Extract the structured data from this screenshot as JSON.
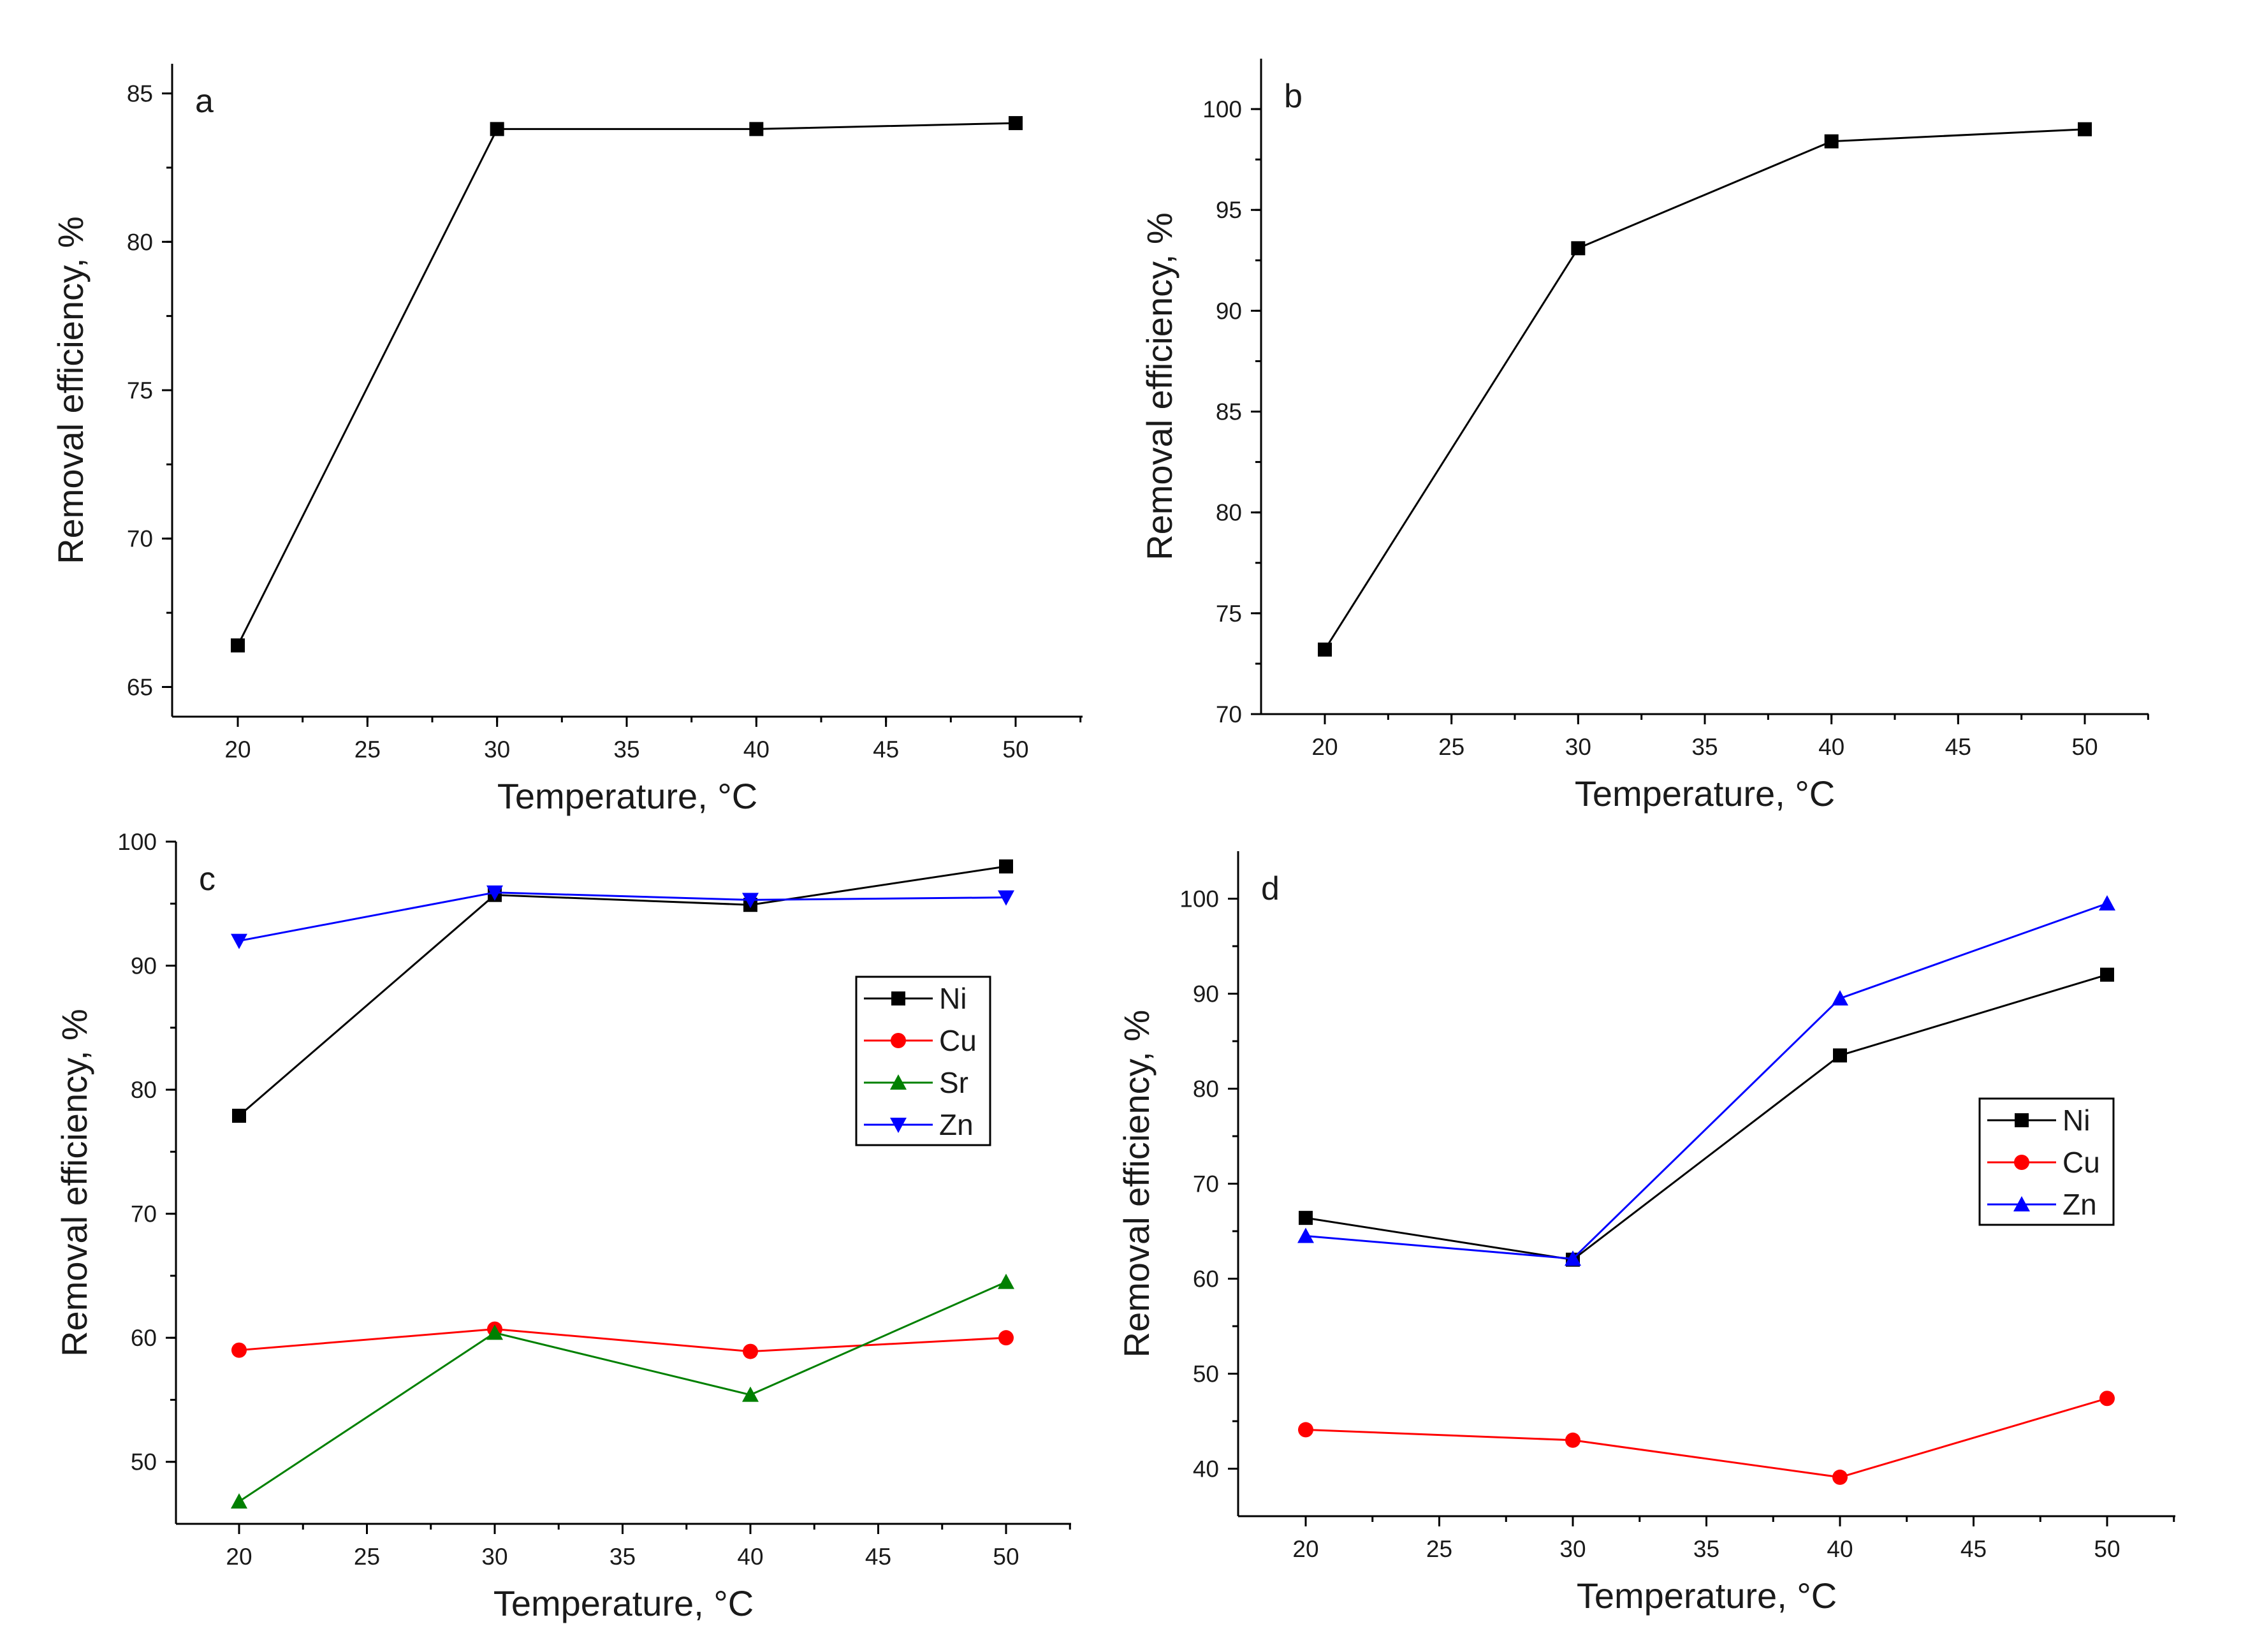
{
  "chart_data": [
    {
      "type": "line",
      "panel_label": "a",
      "xlabel": "Temperature, °C",
      "ylabel": "Removal efficiency, %",
      "xlim": [
        18,
        52
      ],
      "ylim": [
        64,
        86
      ],
      "x_ticks": [
        20,
        25,
        30,
        35,
        40,
        45,
        50
      ],
      "y_ticks": [
        65,
        70,
        75,
        80,
        85
      ],
      "legend": null,
      "series": [
        {
          "name": "",
          "color": "#000000",
          "marker": "square",
          "x": [
            20,
            30,
            40,
            50
          ],
          "values": [
            66.4,
            83.8,
            83.8,
            84.0
          ]
        }
      ]
    },
    {
      "type": "line",
      "panel_label": "b",
      "xlabel": "Temperature, °C",
      "ylabel": "Removal efficiency, %",
      "xlim": [
        17.5,
        52.5
      ],
      "ylim": [
        70,
        102.5
      ],
      "x_ticks": [
        20,
        25,
        30,
        35,
        40,
        45,
        50
      ],
      "y_ticks": [
        70,
        75,
        80,
        85,
        90,
        95,
        100
      ],
      "legend": null,
      "series": [
        {
          "name": "",
          "color": "#000000",
          "marker": "square",
          "x": [
            20,
            30,
            40,
            50
          ],
          "values": [
            73.2,
            93.1,
            98.4,
            99.0
          ]
        }
      ]
    },
    {
      "type": "line",
      "panel_label": "c",
      "xlabel": "Temperature, °C",
      "ylabel": "Removal efficiency, %",
      "xlim": [
        17.5,
        52.5
      ],
      "ylim": [
        45,
        100
      ],
      "x_ticks": [
        20,
        25,
        30,
        35,
        40,
        45,
        50
      ],
      "y_ticks": [
        50,
        60,
        70,
        80,
        90,
        100
      ],
      "legend": "right",
      "series": [
        {
          "name": "Ni",
          "color": "#000000",
          "marker": "square",
          "x": [
            20,
            30,
            40,
            50
          ],
          "values": [
            77.9,
            95.7,
            94.9,
            98.0
          ]
        },
        {
          "name": "Cu",
          "color": "#ff0000",
          "marker": "circle",
          "x": [
            20,
            30,
            40,
            50
          ],
          "values": [
            59.0,
            60.7,
            58.9,
            60.0
          ]
        },
        {
          "name": "Sr",
          "color": "#008000",
          "marker": "triangle-up",
          "x": [
            20,
            30,
            40,
            50
          ],
          "values": [
            46.8,
            60.4,
            55.4,
            64.5
          ]
        },
        {
          "name": "Zn",
          "color": "#0000ff",
          "marker": "triangle-down",
          "x": [
            20,
            30,
            40,
            50
          ],
          "values": [
            92.0,
            95.9,
            95.3,
            95.5
          ]
        }
      ]
    },
    {
      "type": "line",
      "panel_label": "d",
      "xlabel": "Temperature, °C",
      "ylabel": "Removal efficiency, %",
      "xlim": [
        17.5,
        52.5
      ],
      "ylim": [
        35,
        105
      ],
      "x_ticks": [
        20,
        25,
        30,
        35,
        40,
        45,
        50
      ],
      "y_ticks": [
        40,
        50,
        60,
        70,
        80,
        90,
        100
      ],
      "legend": "right",
      "series": [
        {
          "name": "Ni",
          "color": "#000000",
          "marker": "square",
          "x": [
            20,
            30,
            40,
            50
          ],
          "values": [
            66.4,
            62.0,
            83.5,
            92.0
          ]
        },
        {
          "name": "Cu",
          "color": "#ff0000",
          "marker": "circle",
          "x": [
            20,
            30,
            40,
            50
          ],
          "values": [
            44.1,
            43.0,
            39.1,
            47.4
          ]
        },
        {
          "name": "Zn",
          "color": "#0000ff",
          "marker": "triangle-up",
          "x": [
            20,
            30,
            40,
            50
          ],
          "values": [
            64.5,
            62.1,
            89.5,
            99.5
          ]
        }
      ]
    }
  ]
}
